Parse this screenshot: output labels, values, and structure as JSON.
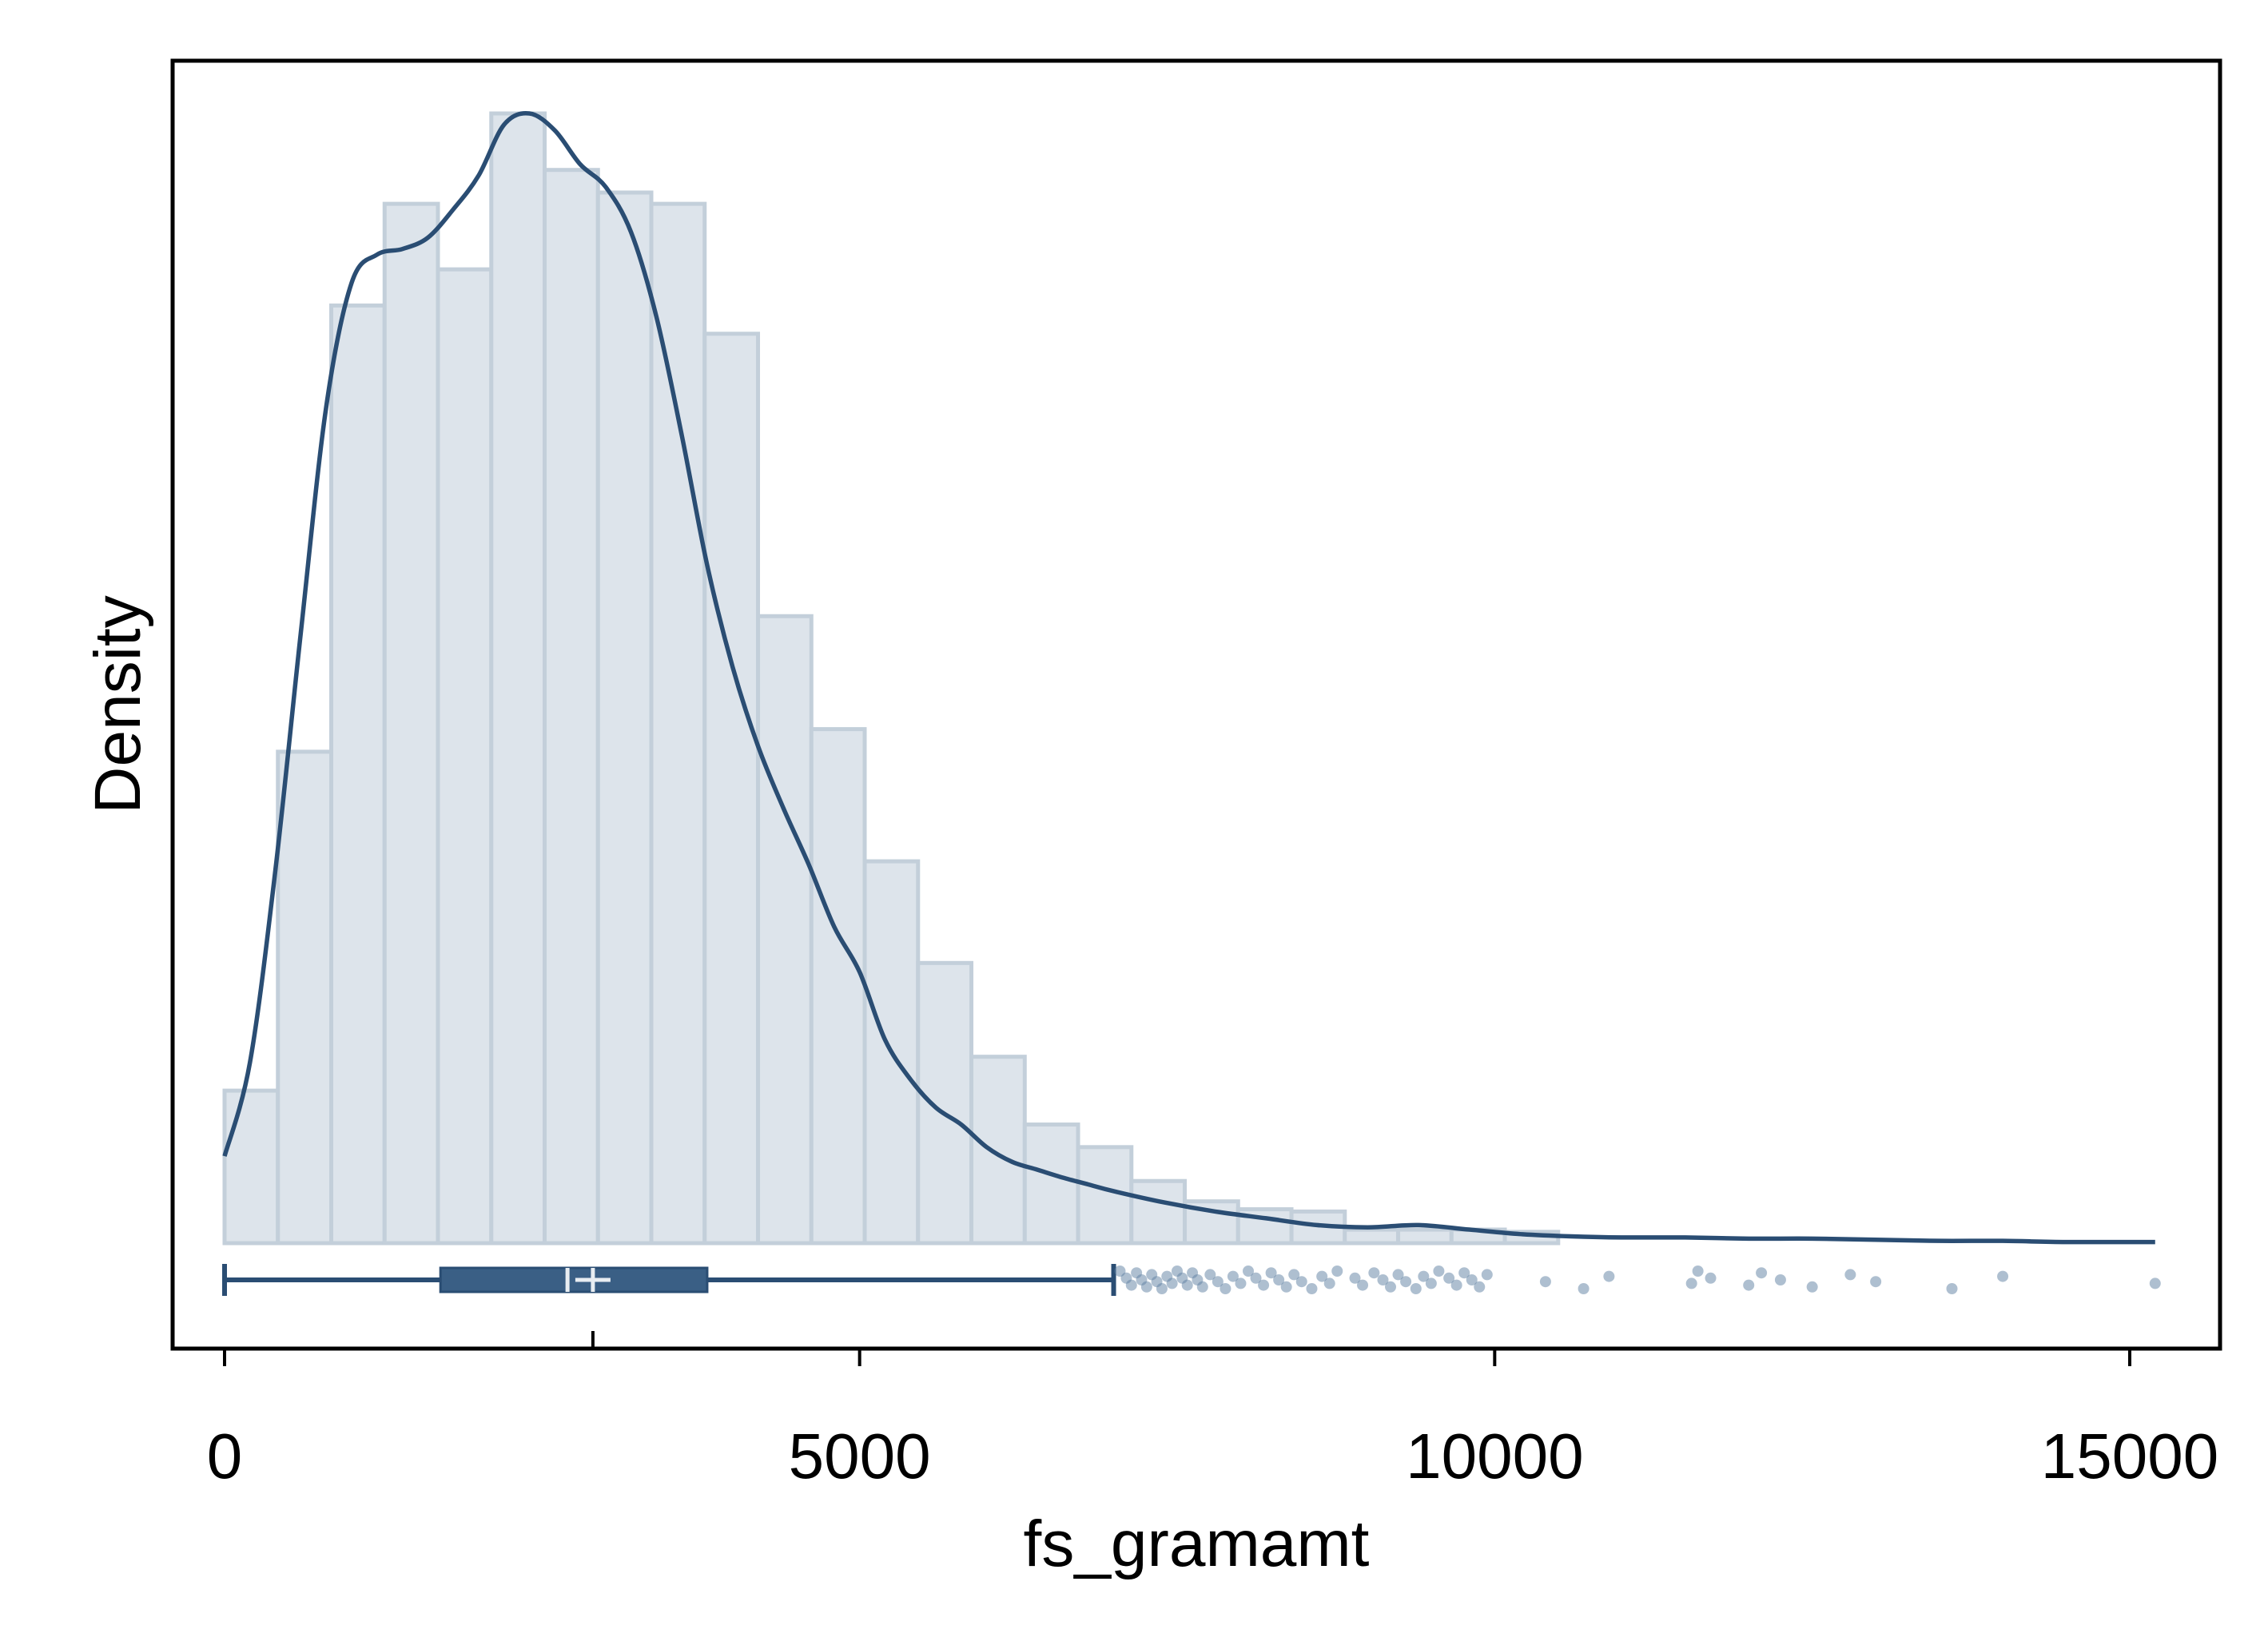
{
  "chart_data": {
    "type": "histogram",
    "title": "",
    "xlabel": "fs_gramamt",
    "ylabel": "Density",
    "xlim": [
      -400,
      15800
    ],
    "x_ticks": [
      0,
      5000,
      10000,
      15000
    ],
    "x_tick_labels": [
      "0",
      "5000",
      "10000",
      "15000"
    ],
    "y_ticks_shown": false,
    "grid": false,
    "legend": "none",
    "colors": {
      "bar_fill": "#dde4eb",
      "bar_stroke": "#c3cfda",
      "curve": "#2a4d73",
      "box": "#3a5f85",
      "outlier": "#5d7fa1",
      "frame": "#000000"
    },
    "histogram": {
      "bin_width": 420,
      "bins": [
        {
          "x0": 0,
          "x1": 420,
          "density": 0.135
        },
        {
          "x0": 420,
          "x1": 840,
          "density": 0.435
        },
        {
          "x0": 840,
          "x1": 1260,
          "density": 0.83
        },
        {
          "x0": 1260,
          "x1": 1680,
          "density": 0.92
        },
        {
          "x0": 1680,
          "x1": 2100,
          "density": 0.862
        },
        {
          "x0": 2100,
          "x1": 2520,
          "density": 1.0
        },
        {
          "x0": 2520,
          "x1": 2940,
          "density": 0.95
        },
        {
          "x0": 2940,
          "x1": 3360,
          "density": 0.93
        },
        {
          "x0": 3360,
          "x1": 3780,
          "density": 0.92
        },
        {
          "x0": 3780,
          "x1": 4200,
          "density": 0.805
        },
        {
          "x0": 4200,
          "x1": 4620,
          "density": 0.555
        },
        {
          "x0": 4620,
          "x1": 5040,
          "density": 0.455
        },
        {
          "x0": 5040,
          "x1": 5460,
          "density": 0.338
        },
        {
          "x0": 5460,
          "x1": 5880,
          "density": 0.248
        },
        {
          "x0": 5880,
          "x1": 6300,
          "density": 0.165
        },
        {
          "x0": 6300,
          "x1": 6720,
          "density": 0.105
        },
        {
          "x0": 6720,
          "x1": 7140,
          "density": 0.085
        },
        {
          "x0": 7140,
          "x1": 7560,
          "density": 0.055
        },
        {
          "x0": 7560,
          "x1": 7980,
          "density": 0.037
        },
        {
          "x0": 7980,
          "x1": 8400,
          "density": 0.03
        },
        {
          "x0": 8400,
          "x1": 8820,
          "density": 0.028
        },
        {
          "x0": 8820,
          "x1": 9240,
          "density": 0.012
        },
        {
          "x0": 9240,
          "x1": 9660,
          "density": 0.012
        },
        {
          "x0": 9660,
          "x1": 10080,
          "density": 0.012
        },
        {
          "x0": 10080,
          "x1": 10500,
          "density": 0.01
        }
      ]
    },
    "kde": {
      "x": [
        0,
        200,
        400,
        600,
        800,
        1000,
        1200,
        1400,
        1600,
        1800,
        2000,
        2200,
        2400,
        2600,
        2800,
        3000,
        3200,
        3400,
        3600,
        3800,
        4000,
        4200,
        4400,
        4600,
        4800,
        5000,
        5200,
        5400,
        5600,
        5800,
        6000,
        6200,
        6400,
        6600,
        6800,
        7000,
        7400,
        7800,
        8200,
        8600,
        9000,
        9400,
        9800,
        10200,
        10600,
        11000,
        11500,
        12000,
        12500,
        13000,
        13500,
        14000,
        14500,
        15200
      ],
      "density": [
        0.077,
        0.16,
        0.33,
        0.54,
        0.74,
        0.85,
        0.875,
        0.88,
        0.89,
        0.915,
        0.945,
        0.99,
        1.0,
        0.985,
        0.955,
        0.935,
        0.895,
        0.82,
        0.715,
        0.6,
        0.51,
        0.44,
        0.385,
        0.335,
        0.28,
        0.24,
        0.18,
        0.145,
        0.12,
        0.105,
        0.085,
        0.072,
        0.065,
        0.058,
        0.052,
        0.046,
        0.036,
        0.028,
        0.022,
        0.016,
        0.014,
        0.016,
        0.012,
        0.008,
        0.006,
        0.005,
        0.005,
        0.004,
        0.004,
        0.003,
        0.002,
        0.002,
        0.001,
        0.001
      ]
    },
    "boxplot": {
      "whisker_low": 0,
      "q1": 1700,
      "median": 2700,
      "mean": 2900,
      "q3": 3800,
      "whisker_high": 7000
    },
    "outliers": [
      7050,
      7100,
      7140,
      7180,
      7220,
      7260,
      7300,
      7340,
      7380,
      7420,
      7460,
      7500,
      7540,
      7580,
      7620,
      7660,
      7700,
      7760,
      7820,
      7880,
      7940,
      8000,
      8060,
      8120,
      8180,
      8240,
      8300,
      8360,
      8420,
      8480,
      8560,
      8640,
      8700,
      8760,
      8900,
      8960,
      9050,
      9120,
      9180,
      9240,
      9300,
      9380,
      9440,
      9500,
      9560,
      9640,
      9700,
      9760,
      9820,
      9880,
      9940,
      10400,
      10700,
      10900,
      11550,
      11600,
      11700,
      12000,
      12100,
      12250,
      12500,
      12800,
      13000,
      13600,
      14000,
      15200
    ]
  }
}
